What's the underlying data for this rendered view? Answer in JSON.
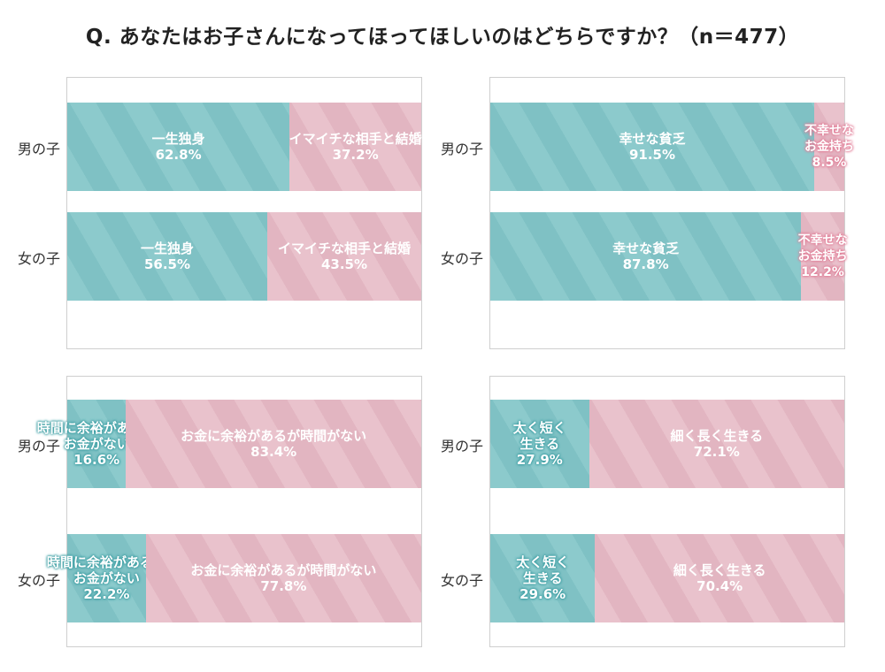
{
  "title": "Q. あなたはお子さんになってほってほしいのはどちらですか？（n＝477）",
  "colors": {
    "teal": "#8ccacc",
    "pink": "#e9c2cc",
    "pink_outline": "#e27d97",
    "teal_outline": "#3c9ea3"
  },
  "chart_data": [
    {
      "type": "bar",
      "orientation": "horizontal-stacked-100",
      "categories": [
        "男の子",
        "女の子"
      ],
      "series": [
        {
          "name": "一生独身",
          "values": [
            62.8,
            56.5
          ]
        },
        {
          "name": "イマイチな相手と結婚",
          "values": [
            37.2,
            43.5
          ]
        }
      ]
    },
    {
      "type": "bar",
      "orientation": "horizontal-stacked-100",
      "categories": [
        "男の子",
        "女の子"
      ],
      "series": [
        {
          "name": "幸せな貧乏",
          "values": [
            91.5,
            87.8
          ]
        },
        {
          "name": "不幸せなお金持ち",
          "values": [
            8.5,
            12.2
          ]
        }
      ]
    },
    {
      "type": "bar",
      "orientation": "horizontal-stacked-100",
      "categories": [
        "男の子",
        "女の子"
      ],
      "series": [
        {
          "name": "時間に余裕があるがお金がない",
          "values": [
            16.6,
            22.2
          ]
        },
        {
          "name": "お金に余裕があるが時間がない",
          "values": [
            83.4,
            77.8
          ]
        }
      ]
    },
    {
      "type": "bar",
      "orientation": "horizontal-stacked-100",
      "categories": [
        "男の子",
        "女の子"
      ],
      "series": [
        {
          "name": "太く短く生きる",
          "values": [
            27.9,
            29.6
          ]
        },
        {
          "name": "細く長く生きる",
          "values": [
            72.1,
            70.4
          ]
        }
      ]
    }
  ]
}
